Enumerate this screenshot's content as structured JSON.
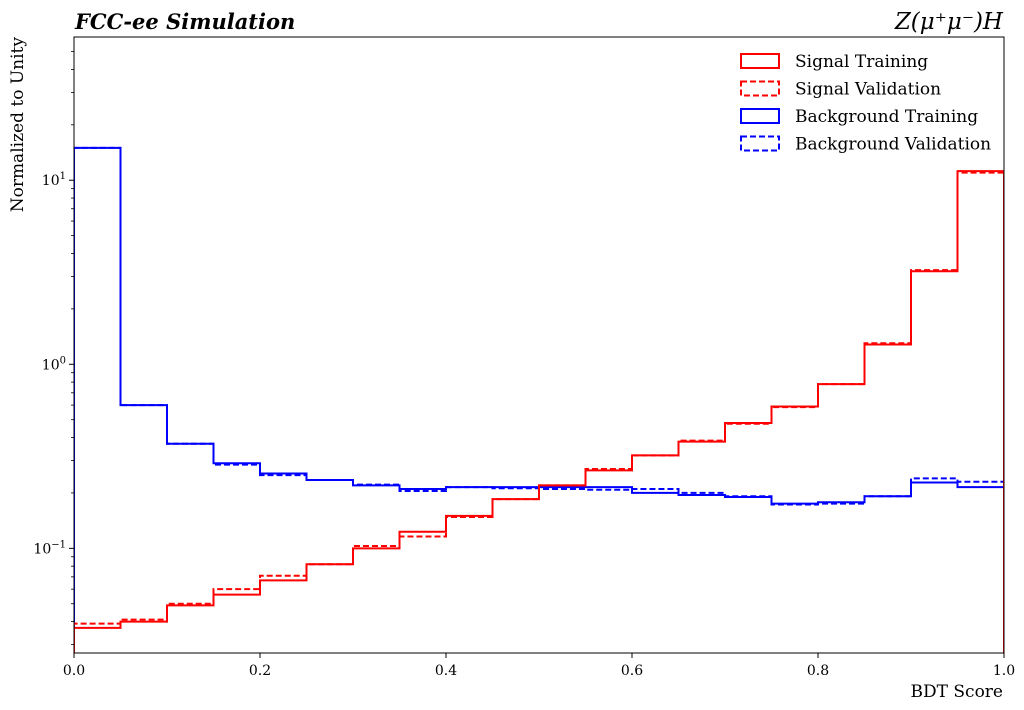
{
  "chart_data": {
    "type": "histogram-step",
    "title_left": "FCC-ee Simulation",
    "title_right": "Z(μ⁺μ⁻)H",
    "xlabel": "BDT Score",
    "ylabel": "Normalized to Unity",
    "xscale": "linear",
    "yscale": "log",
    "xlim": [
      0,
      1
    ],
    "ylim": [
      0.027,
      60
    ],
    "x_ticks": [
      {
        "value": 0.0,
        "label": "0.0"
      },
      {
        "value": 0.2,
        "label": "0.2"
      },
      {
        "value": 0.4,
        "label": "0.4"
      },
      {
        "value": 0.6,
        "label": "0.6"
      },
      {
        "value": 0.8,
        "label": "0.8"
      },
      {
        "value": 1.0,
        "label": "1.0"
      }
    ],
    "y_ticks": [
      {
        "value": 0.1,
        "base": "10",
        "exp": "−1"
      },
      {
        "value": 1,
        "base": "10",
        "exp": "0"
      },
      {
        "value": 10,
        "base": "10",
        "exp": "1"
      }
    ],
    "legend_position": "top-right",
    "bin_edges": [
      0,
      0.05,
      0.1,
      0.15,
      0.2,
      0.25,
      0.3,
      0.35,
      0.4,
      0.45,
      0.5,
      0.55,
      0.6,
      0.65,
      0.7,
      0.75,
      0.8,
      0.85,
      0.9,
      0.95,
      1.0
    ],
    "series": [
      {
        "name": "Signal Training",
        "color": "#ff0000",
        "style": "solid",
        "values": [
          0.037,
          0.04,
          0.049,
          0.056,
          0.067,
          0.082,
          0.1,
          0.123,
          0.15,
          0.185,
          0.22,
          0.265,
          0.32,
          0.38,
          0.48,
          0.59,
          0.78,
          1.28,
          3.2,
          11.2
        ]
      },
      {
        "name": "Signal Validation",
        "color": "#ff0000",
        "style": "dashed",
        "values": [
          0.039,
          0.041,
          0.05,
          0.06,
          0.071,
          0.082,
          0.103,
          0.116,
          0.148,
          0.185,
          0.22,
          0.27,
          0.32,
          0.385,
          0.475,
          0.585,
          0.78,
          1.3,
          3.25,
          11.0
        ]
      },
      {
        "name": "Background Training",
        "color": "#0000ff",
        "style": "solid",
        "values": [
          15.0,
          0.6,
          0.37,
          0.29,
          0.255,
          0.235,
          0.22,
          0.21,
          0.215,
          0.215,
          0.215,
          0.215,
          0.2,
          0.195,
          0.19,
          0.175,
          0.178,
          0.192,
          0.228,
          0.215
        ]
      },
      {
        "name": "Background Validation",
        "color": "#0000ff",
        "style": "dashed",
        "values": [
          15.0,
          0.6,
          0.37,
          0.285,
          0.25,
          0.235,
          0.222,
          0.205,
          0.215,
          0.212,
          0.21,
          0.208,
          0.21,
          0.2,
          0.192,
          0.173,
          0.175,
          0.192,
          0.24,
          0.23
        ]
      }
    ]
  }
}
